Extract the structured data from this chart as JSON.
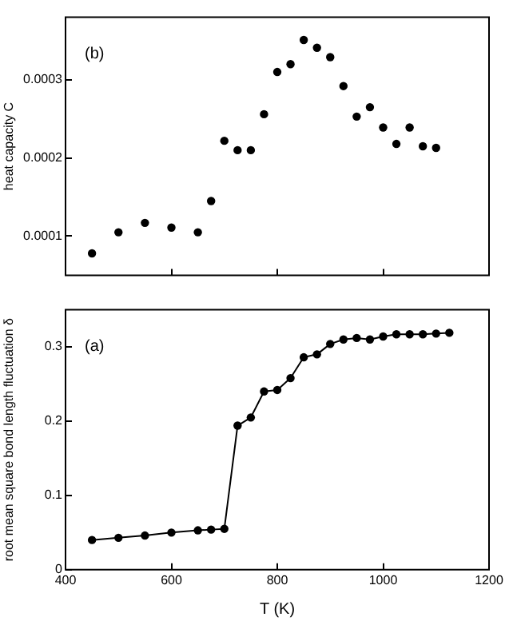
{
  "chart_data": [
    {
      "type": "scatter",
      "ylabel": "heat capacity C",
      "annotations": [
        "(b)"
      ],
      "marker": "circle",
      "tick_labels": "y",
      "xlim": [
        400,
        1200
      ],
      "xticks": [
        400,
        600,
        800,
        1000,
        1200
      ],
      "ylim": [
        5e-05,
        0.00038
      ],
      "yticks": [
        0.0001,
        0.0002,
        0.0003
      ],
      "x": [
        450,
        500,
        550,
        600,
        650,
        675,
        700,
        725,
        750,
        775,
        800,
        825,
        850,
        875,
        900,
        925,
        950,
        975,
        1000,
        1025,
        1050,
        1075,
        1100
      ],
      "series": [
        {
          "color": "#000000",
          "values": [
            7.8e-05,
            0.000105,
            0.000117,
            0.000111,
            0.000105,
            0.000145,
            0.000222,
            0.00021,
            0.00021,
            0.000256,
            0.00031,
            0.00032,
            0.000351,
            0.000341,
            0.000329,
            0.000292,
            0.000253,
            0.000265,
            0.000239,
            0.000218,
            0.000239,
            0.000215,
            0.000213
          ]
        }
      ]
    },
    {
      "type": "line",
      "xlabel": "T (K)",
      "ylabel": "root mean square bond length fluctuation δ",
      "annotations": [
        "(a)"
      ],
      "marker": "circle",
      "xlim": [
        400,
        1200
      ],
      "xticks": [
        400,
        600,
        800,
        1000,
        1200
      ],
      "ylim": [
        0,
        0.35
      ],
      "yticks": [
        0.0,
        0.1,
        0.2,
        0.3
      ],
      "x": [
        450,
        500,
        550,
        600,
        650,
        675,
        700,
        725,
        750,
        775,
        800,
        825,
        850,
        875,
        900,
        925,
        950,
        975,
        1000,
        1025,
        1050,
        1075,
        1100,
        1125
      ],
      "series": [
        {
          "color": "#000000",
          "values": [
            0.04,
            0.043,
            0.046,
            0.05,
            0.053,
            0.054,
            0.055,
            0.194,
            0.205,
            0.24,
            0.242,
            0.258,
            0.286,
            0.29,
            0.304,
            0.31,
            0.312,
            0.31,
            0.314,
            0.317,
            0.317,
            0.317,
            0.318,
            0.319
          ]
        }
      ]
    }
  ]
}
